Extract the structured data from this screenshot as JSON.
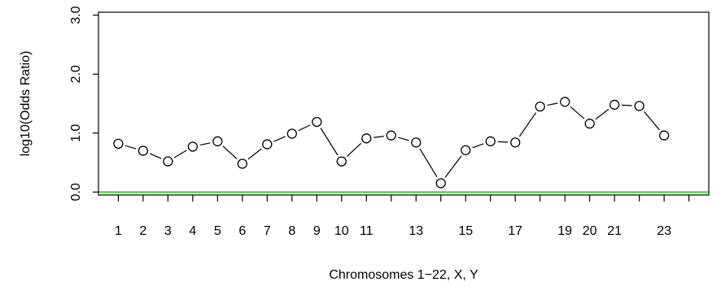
{
  "chart_data": {
    "type": "line",
    "title": "",
    "xlabel": "Chromosomes 1−22, X, Y",
    "ylabel": "log10(Odds Ratio)",
    "ylim": [
      -0.05,
      3.05
    ],
    "xlim": [
      0.2,
      24.8
    ],
    "x": [
      1,
      2,
      3,
      4,
      5,
      6,
      7,
      8,
      9,
      10,
      11,
      12,
      13,
      14,
      15,
      16,
      17,
      18,
      19,
      20,
      21,
      22,
      23
    ],
    "series": [
      {
        "values": [
          0.82,
          0.7,
          0.52,
          0.77,
          0.86,
          0.48,
          0.81,
          0.99,
          1.19,
          0.52,
          0.91,
          0.96,
          0.84,
          0.15,
          0.71,
          0.86,
          0.84,
          1.45,
          1.53,
          1.16,
          1.48,
          1.46,
          0.96
        ],
        "color": "#000000"
      }
    ],
    "reference_line": {
      "y": 0.0,
      "color": "#00cc00"
    },
    "yticks": [
      0.0,
      1.0,
      2.0,
      3.0
    ],
    "ytick_labels": [
      "0.0",
      "1.0",
      "2.0",
      "3.0"
    ],
    "xticks": [
      1,
      2,
      3,
      4,
      5,
      6,
      7,
      8,
      9,
      10,
      11,
      12,
      13,
      14,
      15,
      16,
      17,
      18,
      19,
      20,
      21,
      22,
      23,
      24
    ],
    "xtick_labels": [
      "1",
      "2",
      "3",
      "4",
      "5",
      "6",
      "7",
      "8",
      "9",
      "10",
      "11",
      "",
      "13",
      "",
      "15",
      "",
      "17",
      "",
      "19",
      "20",
      "21",
      "",
      "23",
      ""
    ],
    "grid": false,
    "legend": "none"
  }
}
